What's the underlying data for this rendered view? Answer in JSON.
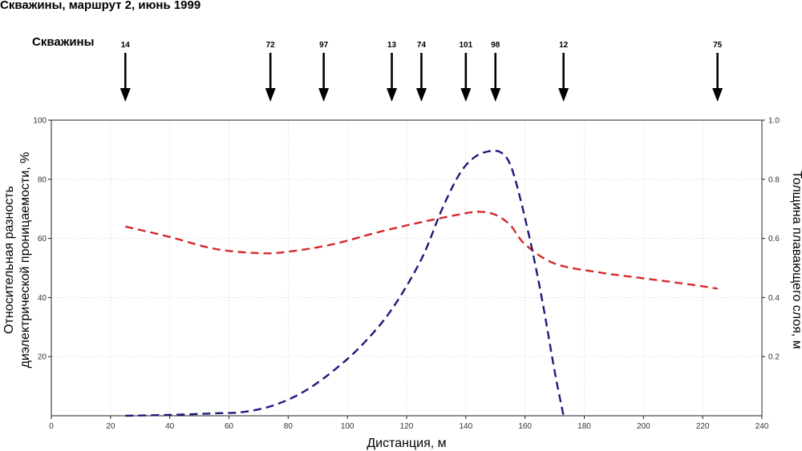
{
  "title": "Скважины, маршрут 2, июнь 1999",
  "wells_label": "Скважины",
  "chart_data": {
    "type": "line",
    "title": "Скважины, маршрут 2, июнь 1999",
    "xlabel": "Дистанция, м",
    "ylabel_left": "Относительная разность диэлектрической проницаемости, %",
    "ylabel_right": "Толщина плавающего слоя, м",
    "xlim": [
      0,
      240
    ],
    "ylim_left": [
      0,
      100
    ],
    "ylim_right": [
      0,
      1.0
    ],
    "x_ticks": [
      0,
      20,
      40,
      60,
      80,
      100,
      120,
      140,
      160,
      180,
      200,
      220,
      240
    ],
    "y_left_ticks": [
      20,
      40,
      60,
      80,
      100
    ],
    "y_right_ticks": [
      0.2,
      0.4,
      0.6,
      0.8,
      1.0
    ],
    "grid": true,
    "wells": [
      {
        "name": "14",
        "x": 25
      },
      {
        "name": "72",
        "x": 74
      },
      {
        "name": "97",
        "x": 92
      },
      {
        "name": "13",
        "x": 115
      },
      {
        "name": "74",
        "x": 125
      },
      {
        "name": "101",
        "x": 140
      },
      {
        "name": "98",
        "x": 150
      },
      {
        "name": "12",
        "x": 173
      },
      {
        "name": "75",
        "x": 225
      }
    ],
    "series": [
      {
        "axis": "left",
        "color": "#d62728",
        "style": "dashed",
        "x": [
          25,
          40,
          55,
          70,
          80,
          95,
          110,
          125,
          140,
          145,
          150,
          155,
          160,
          170,
          185,
          200,
          215,
          225
        ],
        "y": [
          64,
          60.5,
          56.5,
          55,
          55.5,
          58,
          62,
          65.5,
          68.5,
          69,
          68,
          64.5,
          58,
          51.5,
          48.5,
          46.5,
          44.5,
          43
        ]
      },
      {
        "axis": "left",
        "color": "#1a1a7a",
        "style": "dashed",
        "x": [
          25,
          40,
          55,
          65,
          75,
          85,
          95,
          105,
          115,
          125,
          132,
          138,
          143,
          148,
          152,
          155,
          158,
          162,
          166,
          170,
          173
        ],
        "y": [
          0,
          0.3,
          0.8,
          1.3,
          3.5,
          8,
          15,
          24,
          36,
          53,
          70,
          82,
          87.5,
          89.5,
          89,
          85,
          75,
          58,
          38,
          15,
          0
        ]
      }
    ]
  }
}
